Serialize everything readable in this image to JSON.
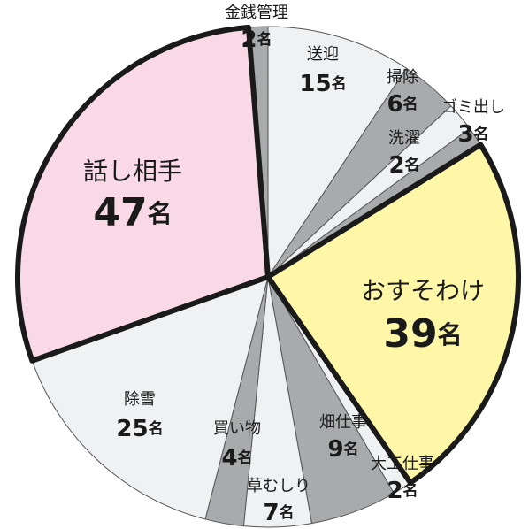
{
  "chart_data": {
    "type": "pie",
    "unit": "名",
    "categories": [
      "送迎",
      "掃除",
      "ゴミ出し",
      "洗濯",
      "おすそわけ",
      "大工仕事",
      "畑仕事",
      "草むしり",
      "買い物",
      "除雪",
      "話し相手",
      "金銭管理"
    ],
    "values": [
      15,
      6,
      3,
      2,
      39,
      2,
      9,
      7,
      4,
      25,
      47,
      2
    ],
    "colors": [
      "#f0f1f3",
      "#a9aaac",
      "#f0f1f3",
      "#a9aaac",
      "#fff7a8",
      "#f0f1f3",
      "#a9aaac",
      "#f0f1f3",
      "#a9aaac",
      "#f0f1f3",
      "#f9d9e6",
      "#a9aaac"
    ],
    "emphasized": [
      4,
      10
    ]
  }
}
